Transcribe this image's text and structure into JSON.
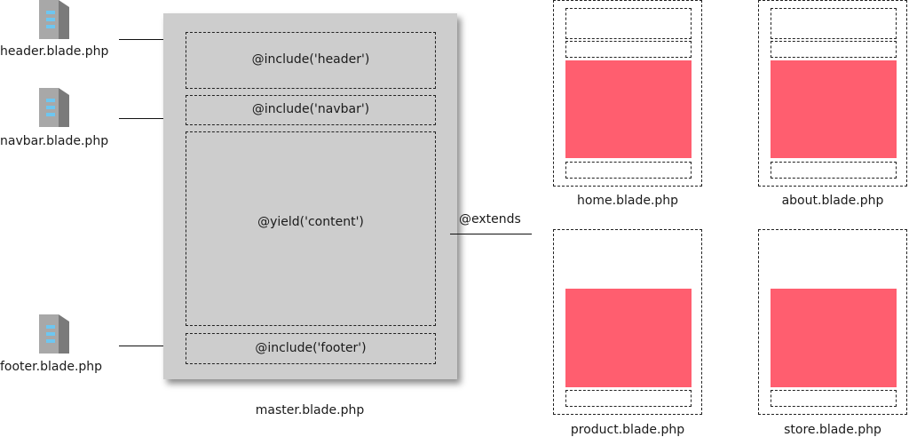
{
  "partials": [
    {
      "id": "header",
      "filename": "header.blade.php"
    },
    {
      "id": "navbar",
      "filename": "navbar.blade.php"
    },
    {
      "id": "footer",
      "filename": "footer.blade.php"
    }
  ],
  "master": {
    "filename": "master.blade.php",
    "slots": {
      "header": "@include('header')",
      "navbar": "@include('navbar')",
      "content": "@yield('content')",
      "footer": "@include('footer')"
    }
  },
  "extends_label": "@extends",
  "pages": [
    {
      "id": "home",
      "filename": "home.blade.php"
    },
    {
      "id": "about",
      "filename": "about.blade.php"
    },
    {
      "id": "product",
      "filename": "product.blade.php"
    },
    {
      "id": "store",
      "filename": "store.blade.php"
    }
  ],
  "colors": {
    "master_background": "#cdcdcd",
    "content_highlight": "#ff5e6f",
    "icon_front": "#a8a8a8",
    "icon_side": "#7a7a7a",
    "icon_stripes": "#6ec6f0"
  }
}
